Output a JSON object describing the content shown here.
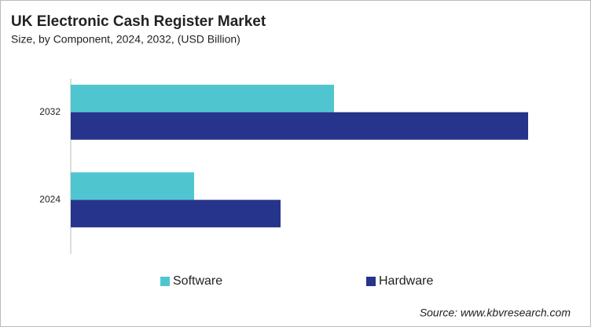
{
  "chart_data": {
    "type": "hbar",
    "title": "UK Electronic Cash Register Market",
    "subtitle": "Size, by Component, 2024, 2032, (USD Billion)",
    "categories": [
      "2032",
      "2024"
    ],
    "series": [
      {
        "name": "Software",
        "color": "#4fc6cf",
        "values": [
          0.335,
          0.157
        ]
      },
      {
        "name": "Hardware",
        "color": "#27348b",
        "values": [
          0.582,
          0.267
        ]
      }
    ],
    "source": "Source: www.kbvresearch.com"
  }
}
